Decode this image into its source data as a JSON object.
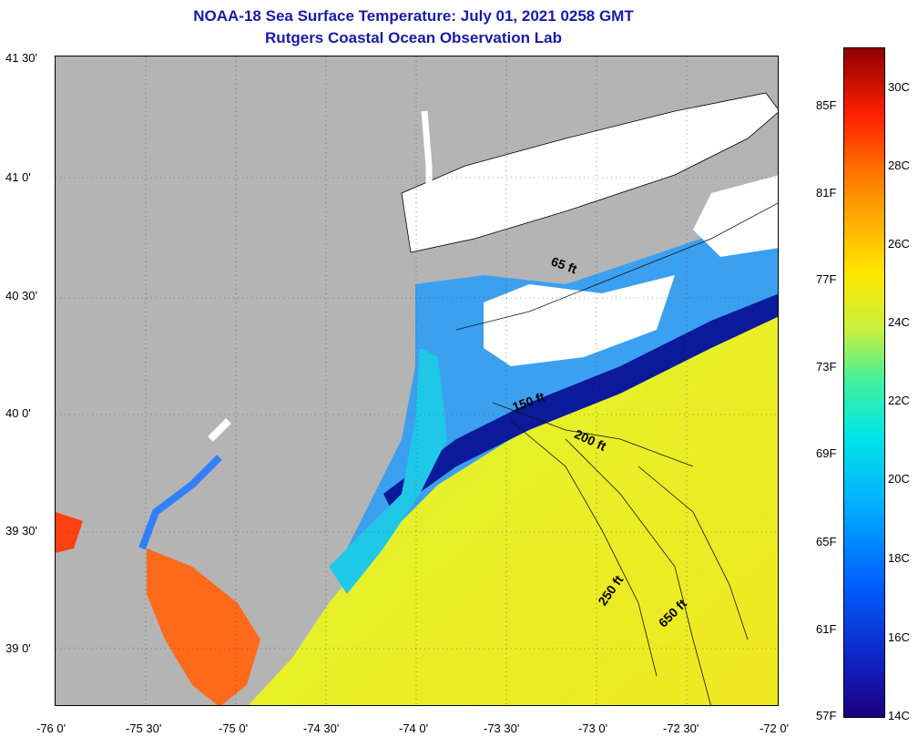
{
  "header": {
    "title": "NOAA-18 Sea Surface Temperature:  July 01, 2021 0258 GMT",
    "subtitle": "Rutgers Coastal Ocean Observation Lab"
  },
  "map": {
    "latitude_labels": [
      "41 30'",
      "41 0'",
      "40 30'",
      "40 0'",
      "39 30'",
      "39 0'"
    ],
    "longitude_labels": [
      "-76 0'",
      "-75 30'",
      "-75 0'",
      "-74 30'",
      "-74 0'",
      "-73 30'",
      "-73 0'",
      "-72 30'",
      "-72 0'"
    ],
    "isobath_labels": [
      "65 ft",
      "150 ft",
      "200 ft",
      "250 ft",
      "650 ft"
    ],
    "colors": {
      "land": "#b4b4b4",
      "cloud": "#ffffff",
      "title": "#1a1aa6"
    }
  },
  "colorbar": {
    "fahrenheit_labels": [
      "85F",
      "81F",
      "77F",
      "73F",
      "69F",
      "65F",
      "61F",
      "57F"
    ],
    "celsius_labels": [
      "30C",
      "28C",
      "26C",
      "24C",
      "22C",
      "20C",
      "18C",
      "16C",
      "14C"
    ]
  }
}
